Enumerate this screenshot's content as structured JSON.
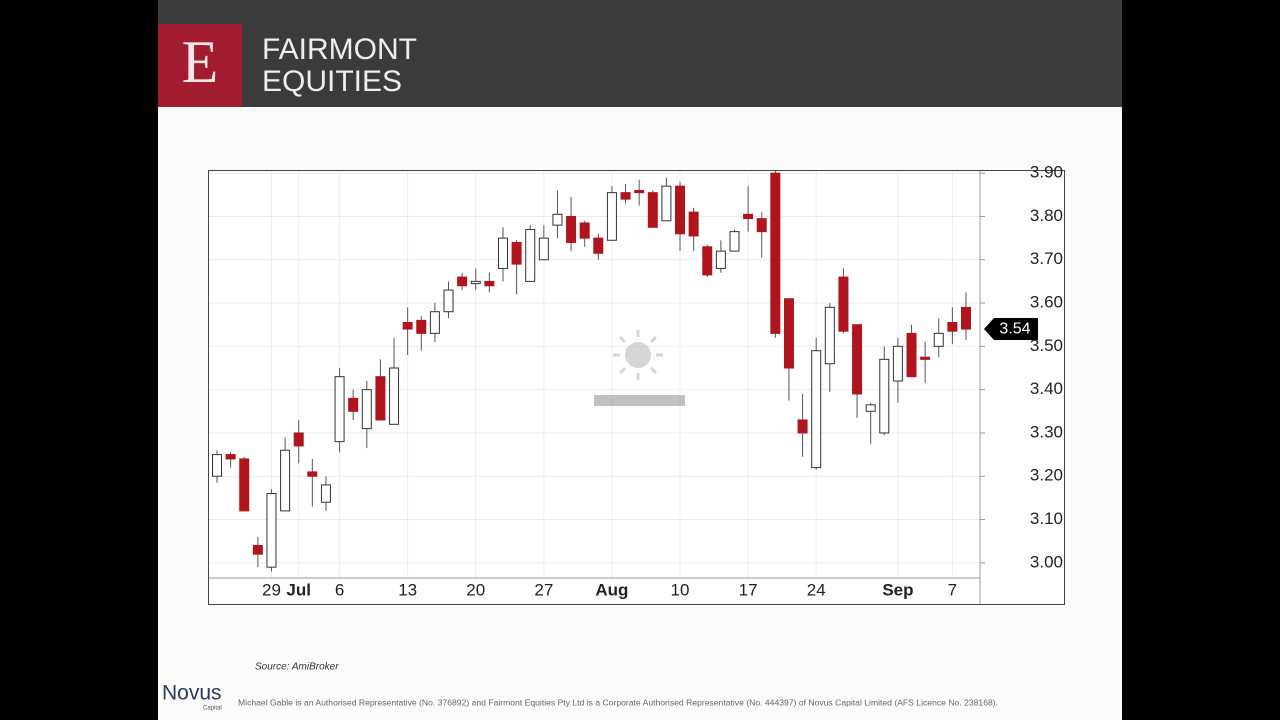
{
  "header": {
    "logo_letter": "E",
    "brand_line1": "FAIRMONT",
    "brand_line2": "EQUITIES"
  },
  "chart_data": {
    "type": "candlestick",
    "categories": [
      null,
      null,
      null,
      null,
      "29",
      null,
      "Jul",
      null,
      null,
      "6",
      null,
      null,
      null,
      null,
      "13",
      null,
      null,
      null,
      null,
      "20",
      null,
      null,
      null,
      null,
      "27",
      null,
      null,
      null,
      null,
      "Aug",
      null,
      null,
      null,
      null,
      "10",
      null,
      null,
      null,
      null,
      "17",
      null,
      null,
      null,
      null,
      "24",
      null,
      null,
      null,
      null,
      null,
      "Sep",
      null,
      null,
      null,
      "7",
      null
    ],
    "open": [
      3.2,
      3.25,
      3.24,
      3.04,
      2.99,
      3.12,
      3.3,
      3.21,
      3.14,
      3.28,
      3.38,
      3.31,
      3.43,
      3.32,
      3.555,
      3.56,
      3.53,
      3.58,
      3.66,
      3.645,
      3.65,
      3.68,
      3.74,
      3.65,
      3.7,
      3.78,
      3.8,
      3.785,
      3.75,
      3.745,
      3.855,
      3.86,
      3.855,
      3.79,
      3.87,
      3.81,
      3.73,
      3.68,
      3.72,
      3.805,
      3.795,
      3.9,
      3.61,
      3.33,
      3.22,
      3.46,
      3.66,
      3.55,
      3.35,
      3.3,
      3.42,
      3.53,
      3.475,
      3.5,
      3.555,
      3.59
    ],
    "high": [
      3.26,
      3.255,
      3.245,
      3.06,
      3.17,
      3.29,
      3.33,
      3.24,
      3.2,
      3.45,
      3.4,
      3.42,
      3.47,
      3.52,
      3.59,
      3.57,
      3.6,
      3.65,
      3.67,
      3.68,
      3.67,
      3.775,
      3.745,
      3.78,
      3.78,
      3.86,
      3.845,
      3.79,
      3.76,
      3.87,
      3.875,
      3.885,
      3.86,
      3.89,
      3.88,
      3.82,
      3.735,
      3.745,
      3.77,
      3.87,
      3.81,
      3.905,
      3.61,
      3.39,
      3.52,
      3.6,
      3.68,
      3.55,
      3.37,
      3.5,
      3.52,
      3.55,
      3.51,
      3.565,
      3.59,
      3.625
    ],
    "low": [
      3.185,
      3.22,
      3.12,
      2.99,
      2.98,
      3.12,
      3.23,
      3.13,
      3.12,
      3.255,
      3.33,
      3.265,
      3.33,
      3.32,
      3.48,
      3.49,
      3.51,
      3.565,
      3.63,
      3.63,
      3.625,
      3.65,
      3.62,
      3.65,
      3.7,
      3.75,
      3.72,
      3.73,
      3.7,
      3.745,
      3.83,
      3.825,
      3.775,
      3.79,
      3.72,
      3.72,
      3.66,
      3.67,
      3.72,
      3.765,
      3.705,
      3.52,
      3.375,
      3.245,
      3.215,
      3.395,
      3.53,
      3.335,
      3.275,
      3.295,
      3.37,
      3.43,
      3.415,
      3.475,
      3.505,
      3.515
    ],
    "close": [
      3.25,
      3.24,
      3.12,
      3.02,
      3.16,
      3.26,
      3.27,
      3.2,
      3.18,
      3.43,
      3.35,
      3.4,
      3.33,
      3.45,
      3.54,
      3.53,
      3.58,
      3.63,
      3.64,
      3.65,
      3.64,
      3.75,
      3.69,
      3.77,
      3.75,
      3.805,
      3.74,
      3.75,
      3.715,
      3.855,
      3.84,
      3.855,
      3.775,
      3.87,
      3.76,
      3.755,
      3.665,
      3.72,
      3.765,
      3.795,
      3.765,
      3.53,
      3.45,
      3.3,
      3.49,
      3.59,
      3.535,
      3.39,
      3.365,
      3.47,
      3.5,
      3.43,
      3.47,
      3.53,
      3.535,
      3.54
    ],
    "up_color": "#ffffff",
    "down_color": "#b0141c",
    "ylim": [
      2.965,
      3.905
    ],
    "yticks": [
      {
        "value": 3,
        "label": "3.00"
      },
      {
        "value": 3.1,
        "label": "3.10"
      },
      {
        "value": 3.2,
        "label": "3.20"
      },
      {
        "value": 3.3,
        "label": "3.30"
      },
      {
        "value": 3.4,
        "label": "3.40"
      },
      {
        "value": 3.5,
        "label": "3.50"
      },
      {
        "value": 3.6,
        "label": "3.60"
      },
      {
        "value": 3.7,
        "label": "3.70"
      },
      {
        "value": 3.8,
        "label": "3.80"
      },
      {
        "value": 3.9,
        "label": "3.90"
      }
    ],
    "grid": true,
    "last_price": 3.54
  },
  "source": "Source: AmiBroker",
  "footer": {
    "logo": "Novus",
    "logo_sub": "Capital",
    "disclaimer": "Michael Gable is an Authorised Representative (No. 376892) and Fairmont Equities Pty Ltd is a Corporate Authorised Representative (No. 444397) of Novus Capital Limited (AFS Licence No. 238168)."
  }
}
